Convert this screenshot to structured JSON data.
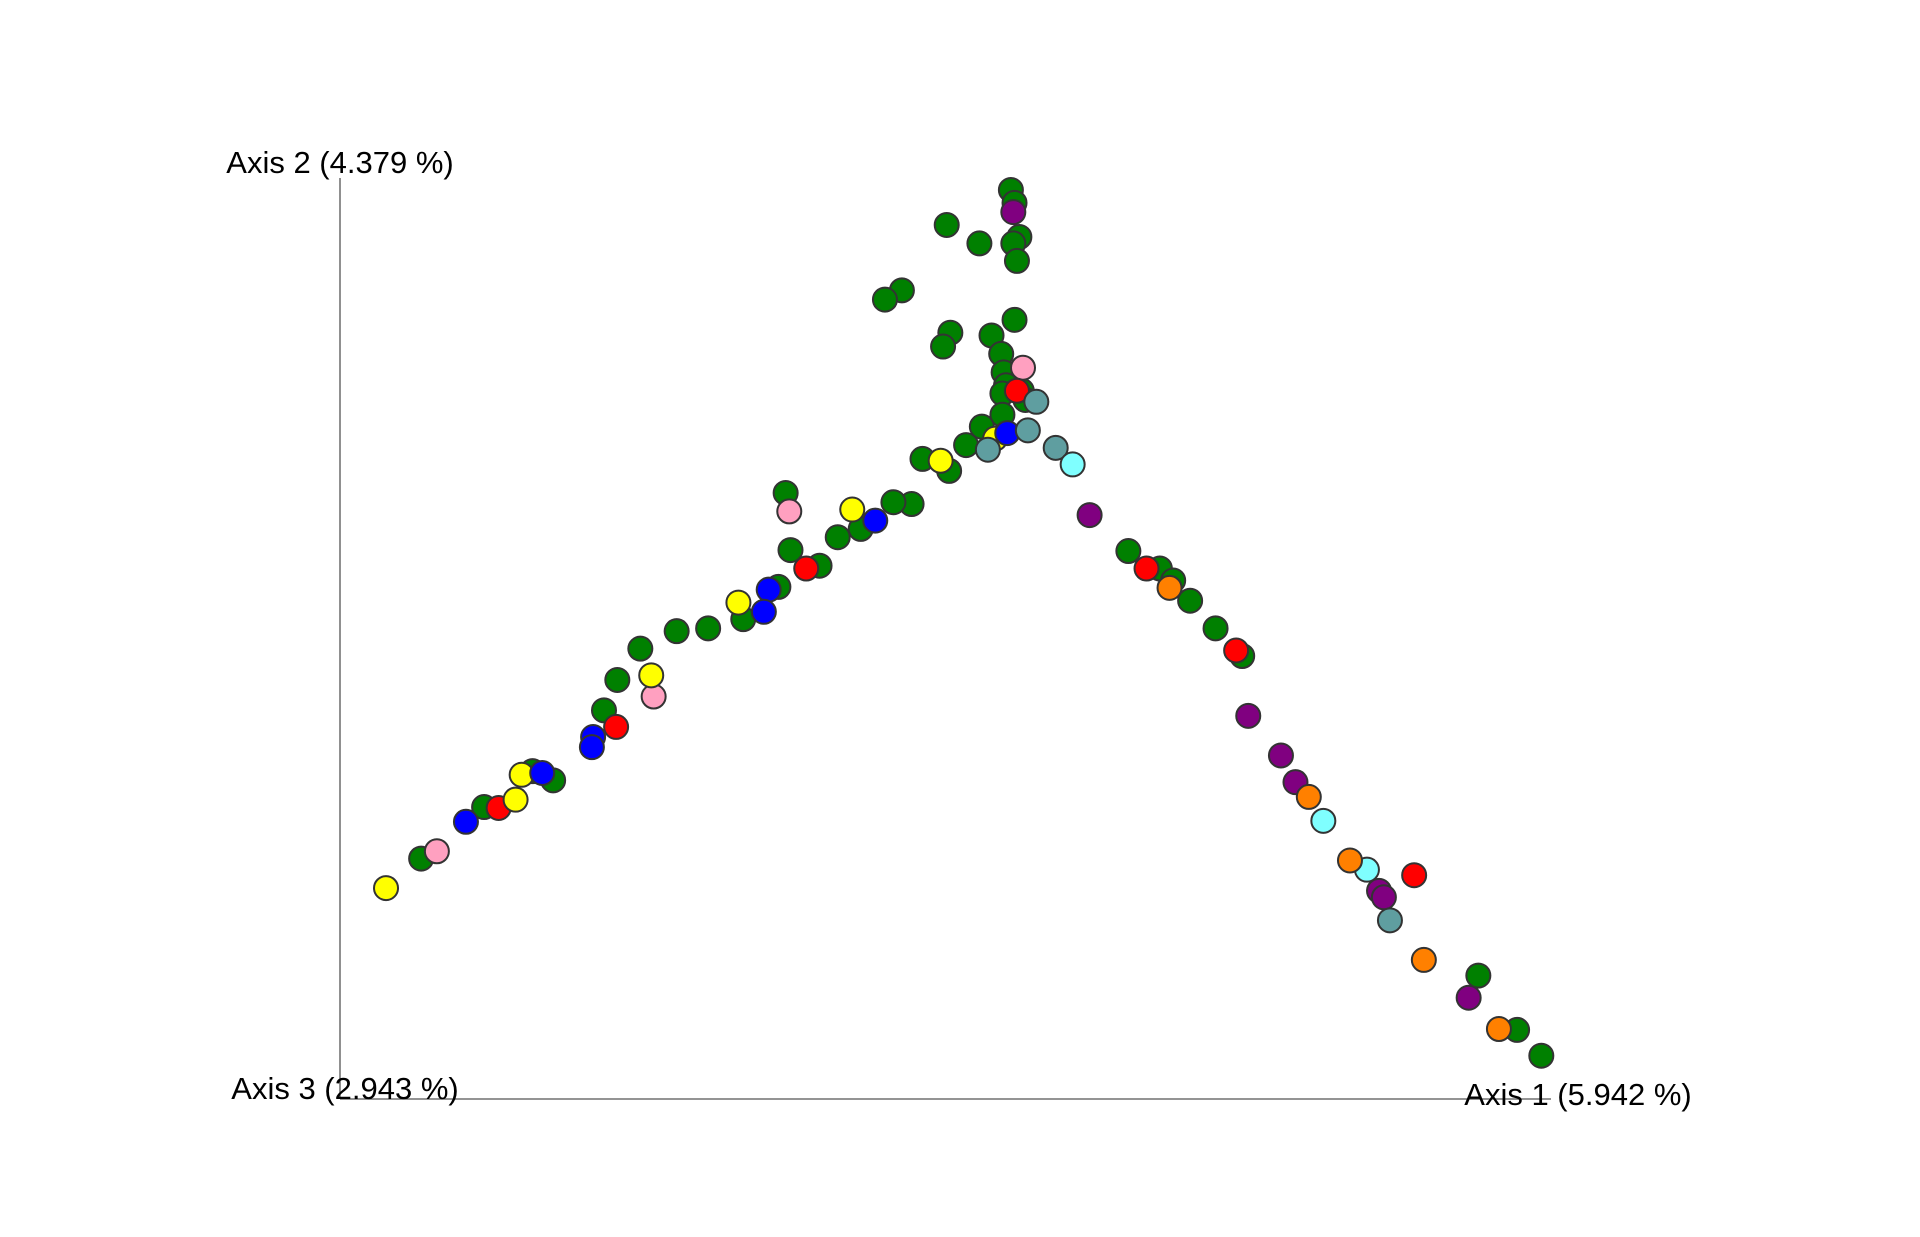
{
  "chart_data": {
    "type": "scatter",
    "x_label": "Axis 1 (5.942 %)",
    "y_label": "Axis 2 (4.379 %)",
    "z_label": "Axis 3 (2.943 %)",
    "xlim": [
      0,
      100
    ],
    "ylim": [
      0,
      100
    ],
    "series": [
      {
        "color": "#008000",
        "x": [
          55.4,
          55.7,
          50.1,
          52.8,
          56.1,
          55.6,
          55.9,
          46.4,
          45.0,
          50.4,
          49.8,
          53.8,
          55.7,
          54.6,
          54.8,
          55.0,
          54.7,
          56.3,
          56.6,
          54.7,
          53.0,
          51.7,
          48.1,
          50.3,
          47.2,
          45.7,
          43.0,
          41.1,
          39.6,
          37.2,
          36.8,
          36.2,
          33.3,
          30.4,
          27.8,
          24.8,
          22.9,
          21.8,
          17.6,
          15.9,
          11.9,
          6.7,
          65.1,
          67.7,
          68.8,
          70.2,
          72.3,
          74.5,
          94.0,
          97.2,
          99.2
        ],
        "values": [
          98.7,
          97.3,
          94.9,
          92.9,
          93.6,
          92.9,
          91.0,
          87.8,
          86.8,
          83.2,
          81.7,
          82.9,
          84.6,
          80.9,
          78.9,
          77.5,
          76.6,
          76.9,
          75.9,
          74.3,
          73.0,
          71.0,
          69.5,
          68.2,
          64.6,
          64.8,
          61.9,
          61.0,
          57.9,
          59.6,
          65.8,
          55.6,
          52.1,
          51.1,
          50.8,
          48.9,
          45.5,
          42.2,
          34.6,
          35.6,
          31.7,
          26.1,
          59.5,
          57.6,
          56.3,
          54.1,
          51.1,
          48.1,
          13.4,
          7.5,
          4.7
        ]
      },
      {
        "color": "#800080",
        "x": [
          55.6,
          61.9,
          75.0,
          77.7,
          78.9,
          85.8,
          86.2,
          93.2
        ],
        "values": [
          96.3,
          63.4,
          41.6,
          37.3,
          34.4,
          22.6,
          21.9,
          11.0
        ]
      },
      {
        "color": "#ffa0c0",
        "x": [
          56.4,
          37.1,
          25.9,
          8.0
        ],
        "values": [
          79.4,
          63.8,
          43.7,
          26.9
        ]
      },
      {
        "color": "#ff0000",
        "x": [
          55.9,
          38.5,
          22.8,
          13.1,
          66.6,
          74.0,
          88.7
        ],
        "values": [
          76.9,
          57.6,
          40.4,
          31.6,
          57.6,
          48.7,
          24.3
        ]
      },
      {
        "color": "#ffff00",
        "x": [
          54.1,
          49.6,
          42.3,
          32.9,
          25.7,
          15.0,
          14.5,
          3.8
        ],
        "values": [
          71.7,
          69.3,
          64.0,
          53.9,
          46.0,
          35.2,
          32.5,
          22.9
        ]
      },
      {
        "color": "#0000ff",
        "x": [
          55.1,
          44.2,
          35.4,
          35.0,
          20.9,
          20.8,
          16.7,
          10.4
        ],
        "values": [
          72.3,
          62.8,
          55.3,
          52.9,
          39.3,
          38.2,
          35.4,
          30.1
        ]
      },
      {
        "color": "#5f9ea0",
        "x": [
          57.5,
          56.8,
          53.5,
          59.1,
          86.7
        ],
        "values": [
          75.7,
          72.6,
          70.5,
          70.7,
          19.4
        ]
      },
      {
        "color": "#7fffff",
        "x": [
          60.5,
          81.2,
          84.8
        ],
        "values": [
          68.9,
          30.2,
          24.9
        ]
      },
      {
        "color": "#ff8000",
        "x": [
          68.5,
          80.0,
          83.4,
          89.5,
          95.7
        ],
        "values": [
          55.5,
          32.8,
          25.9,
          15.1,
          7.6
        ]
      }
    ]
  }
}
